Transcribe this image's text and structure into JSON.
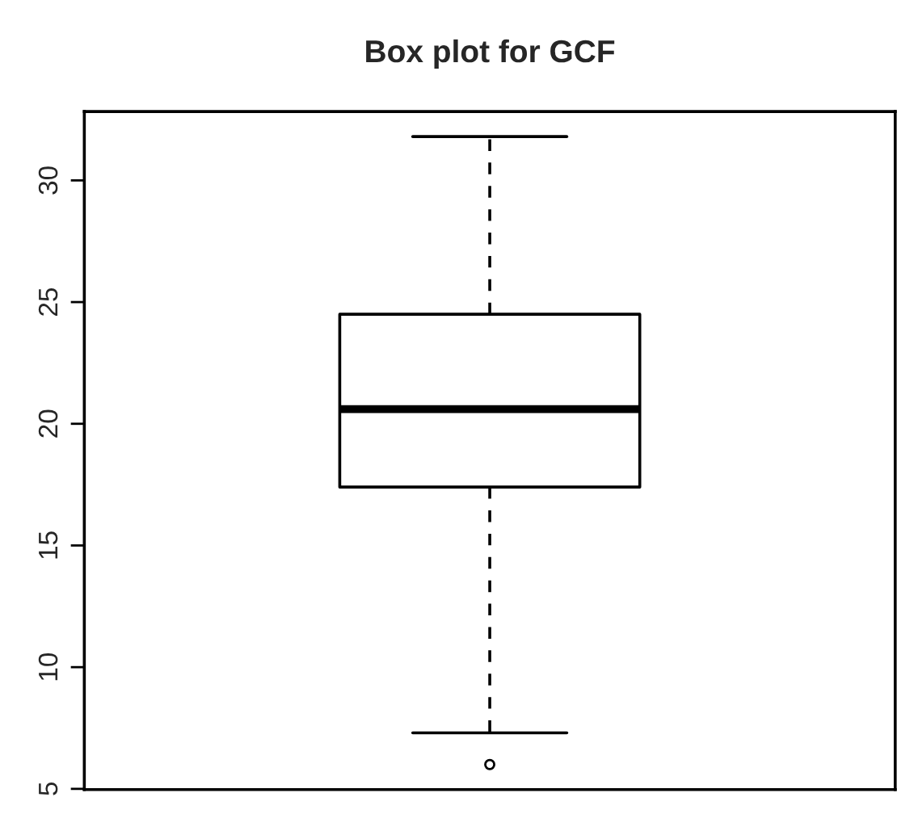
{
  "chart_data": {
    "type": "box",
    "title": "Box plot for GCF",
    "categories": [
      null
    ],
    "boxes": [
      {
        "low": 7.3,
        "q1": 17.4,
        "median": 20.6,
        "q3": 24.5,
        "high": 31.8,
        "outliers": [
          6.0
        ]
      }
    ],
    "ylim": [
      4.97,
      32.83
    ],
    "yticks": [
      5,
      10,
      15,
      20,
      25,
      30
    ],
    "grid": false,
    "tick_labels": "y"
  }
}
